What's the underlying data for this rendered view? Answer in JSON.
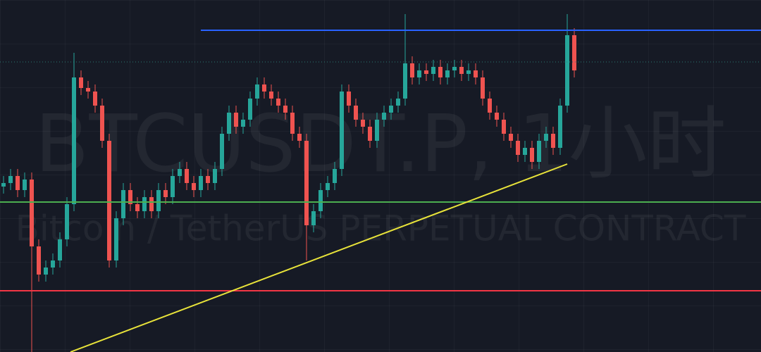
{
  "chart_data": {
    "type": "candlestick",
    "title": "BTCUSDT.P, 1小时",
    "subtitle": "Bitcoin / TetherUS PERPETUAL CONTRACT",
    "xlim": [
      -0.5,
      107.5
    ],
    "ylim": [
      0,
      100
    ],
    "up_color": "#26a69a",
    "down_color": "#ef5350",
    "open": [
      47,
      48,
      50,
      46,
      49,
      30,
      22,
      24,
      26,
      32,
      42,
      78,
      75,
      74,
      70,
      60,
      26,
      38,
      46,
      42,
      40,
      44,
      40,
      46,
      44,
      50,
      52,
      48,
      46,
      50,
      48,
      52,
      62,
      68,
      64,
      66,
      72,
      76,
      74,
      72,
      70,
      68,
      62,
      60,
      36,
      40,
      46,
      48,
      52,
      74,
      70,
      66,
      64,
      60,
      66,
      68,
      70,
      72,
      82,
      78,
      80,
      79,
      81,
      78,
      80,
      81,
      79,
      80,
      78,
      72,
      68,
      66,
      62,
      60,
      56,
      58,
      54,
      60,
      62,
      58,
      70,
      90
    ],
    "high": [
      50,
      52,
      52,
      51,
      51,
      32,
      26,
      28,
      34,
      44,
      85,
      80,
      77,
      76,
      72,
      62,
      40,
      48,
      48,
      44,
      46,
      46,
      48,
      48,
      52,
      54,
      54,
      50,
      52,
      52,
      54,
      64,
      70,
      70,
      68,
      74,
      78,
      78,
      76,
      74,
      72,
      70,
      64,
      62,
      42,
      48,
      50,
      54,
      76,
      76,
      72,
      68,
      66,
      68,
      70,
      72,
      74,
      96,
      84,
      82,
      82,
      83,
      83,
      82,
      83,
      83,
      82,
      82,
      80,
      74,
      70,
      68,
      64,
      62,
      60,
      60,
      62,
      64,
      64,
      72,
      96,
      92
    ],
    "low": [
      45,
      46,
      44,
      44,
      0,
      20,
      20,
      22,
      24,
      30,
      40,
      73,
      72,
      68,
      58,
      24,
      24,
      36,
      40,
      38,
      38,
      38,
      38,
      42,
      42,
      48,
      46,
      44,
      44,
      46,
      46,
      50,
      60,
      62,
      62,
      64,
      70,
      72,
      70,
      68,
      66,
      60,
      58,
      26,
      34,
      38,
      44,
      46,
      50,
      68,
      64,
      62,
      58,
      58,
      64,
      66,
      68,
      70,
      76,
      76,
      77,
      77,
      76,
      76,
      78,
      77,
      77,
      76,
      70,
      66,
      64,
      60,
      58,
      54,
      54,
      52,
      52,
      58,
      56,
      56,
      68,
      78
    ],
    "close": [
      48,
      50,
      46,
      49,
      30,
      22,
      24,
      26,
      32,
      42,
      78,
      75,
      74,
      70,
      60,
      26,
      38,
      46,
      42,
      40,
      44,
      40,
      46,
      44,
      50,
      52,
      48,
      46,
      50,
      48,
      52,
      62,
      68,
      64,
      66,
      72,
      76,
      74,
      72,
      70,
      68,
      62,
      60,
      36,
      40,
      46,
      48,
      52,
      74,
      70,
      66,
      64,
      60,
      66,
      68,
      70,
      72,
      82,
      78,
      80,
      79,
      81,
      78,
      80,
      81,
      79,
      80,
      78,
      72,
      68,
      66,
      62,
      60,
      56,
      58,
      54,
      60,
      62,
      58,
      70,
      90,
      80
    ],
    "levels": [
      {
        "value": 91.4,
        "color": "#2962ff",
        "from": 28
      },
      {
        "value": 82.4,
        "color": "#2a7a74",
        "dotted": true
      },
      {
        "value": 42.6,
        "color": "#4caf50"
      },
      {
        "value": 17.4,
        "color": "#f23645"
      }
    ],
    "trend_line": {
      "color": "#e8e33a",
      "x": [
        9.5,
        80
      ],
      "y": [
        0,
        53.4
      ]
    }
  }
}
